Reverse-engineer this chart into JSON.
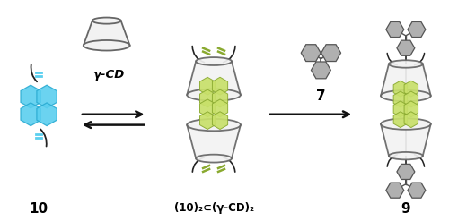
{
  "background_color": "#ffffff",
  "fig_width": 5.0,
  "fig_height": 2.47,
  "dpi": 100,
  "label_10": "10",
  "label_complex": "(10)₂⊂(γ-CD)₂",
  "label_7": "7",
  "label_9": "9",
  "label_gamma_cd": "γ-CD",
  "blue_color": "#5bcfef",
  "blue_edge": "#2aabd2",
  "green_color": "#c8e06a",
  "green_edge": "#8aaa30",
  "gray_color": "#909090",
  "dark_gray": "#555555",
  "light_gray": "#b0b0b0",
  "arrow_color": "#111111",
  "cd_face_color": "#f2f2f2",
  "cd_edge_color": "#666666",
  "thread_color": "#222222"
}
